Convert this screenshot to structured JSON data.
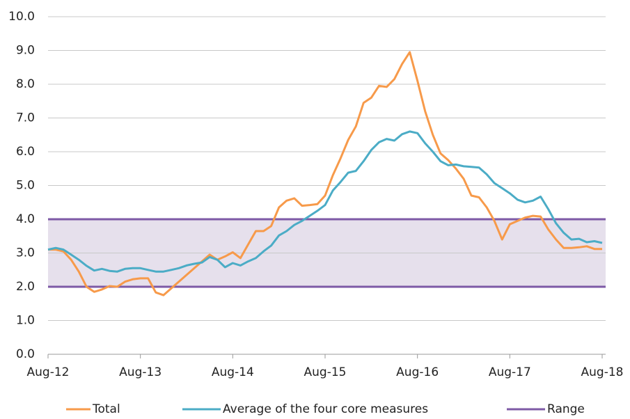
{
  "chart_data": {
    "type": "line",
    "categories": [
      "Aug-12",
      null,
      null,
      null,
      null,
      null,
      null,
      null,
      null,
      null,
      null,
      null,
      "Aug-13",
      null,
      null,
      null,
      null,
      null,
      null,
      null,
      null,
      null,
      null,
      null,
      "Aug-14",
      null,
      null,
      null,
      null,
      null,
      null,
      null,
      null,
      null,
      null,
      null,
      "Aug-15",
      null,
      null,
      null,
      null,
      null,
      null,
      null,
      null,
      null,
      null,
      null,
      "Aug-16",
      null,
      null,
      null,
      null,
      null,
      null,
      null,
      null,
      null,
      null,
      null,
      "Aug-17",
      null,
      null,
      null,
      null,
      null,
      null,
      null,
      null,
      null,
      null,
      null,
      "Aug-18"
    ],
    "series": [
      {
        "name": "Total",
        "color": "#f79a4a",
        "values": [
          3.1,
          3.1,
          3.05,
          2.8,
          2.45,
          2.0,
          1.85,
          1.92,
          2.02,
          2.0,
          2.15,
          2.22,
          2.25,
          2.25,
          1.83,
          1.75,
          1.95,
          2.15,
          2.35,
          2.55,
          2.75,
          2.95,
          2.8,
          2.9,
          3.02,
          2.85,
          3.25,
          3.65,
          3.65,
          3.8,
          4.35,
          4.55,
          4.62,
          4.4,
          4.42,
          4.45,
          4.7,
          5.3,
          5.8,
          6.35,
          6.75,
          7.45,
          7.6,
          7.95,
          7.92,
          8.15,
          8.6,
          8.95,
          8.1,
          7.2,
          6.5,
          5.95,
          5.75,
          5.5,
          5.2,
          4.7,
          4.65,
          4.35,
          3.95,
          3.4,
          3.85,
          3.95,
          4.05,
          4.1,
          4.08,
          3.7,
          3.4,
          3.15,
          3.15,
          3.17,
          3.2,
          3.12,
          3.12
        ]
      },
      {
        "name": "Average of the four core measures",
        "color": "#4bacc6",
        "values": [
          3.1,
          3.15,
          3.1,
          2.95,
          2.8,
          2.62,
          2.48,
          2.53,
          2.47,
          2.45,
          2.53,
          2.55,
          2.55,
          2.5,
          2.45,
          2.45,
          2.5,
          2.55,
          2.63,
          2.68,
          2.72,
          2.88,
          2.8,
          2.58,
          2.7,
          2.63,
          2.75,
          2.85,
          3.05,
          3.22,
          3.52,
          3.65,
          3.83,
          3.95,
          4.1,
          4.25,
          4.42,
          4.85,
          5.1,
          5.38,
          5.43,
          5.72,
          6.05,
          6.28,
          6.38,
          6.33,
          6.52,
          6.6,
          6.55,
          6.25,
          6.0,
          5.72,
          5.6,
          5.62,
          5.57,
          5.55,
          5.53,
          5.33,
          5.07,
          4.92,
          4.77,
          4.58,
          4.5,
          4.55,
          4.67,
          4.3,
          3.88,
          3.6,
          3.4,
          3.42,
          3.32,
          3.35,
          3.3
        ]
      }
    ],
    "range": {
      "name": "Range",
      "color": "#7d5aa6",
      "fill": "#e6e0ec",
      "values": [
        2.0,
        4.0
      ]
    },
    "ylim": [
      0,
      10
    ],
    "yticks": [
      {
        "value": 0,
        "label": "0.0"
      },
      {
        "value": 1,
        "label": "1.0"
      },
      {
        "value": 2,
        "label": "2.0"
      },
      {
        "value": 3,
        "label": "3.0"
      },
      {
        "value": 4,
        "label": "4.0"
      },
      {
        "value": 5,
        "label": "5.0"
      },
      {
        "value": 6,
        "label": "6.0"
      },
      {
        "value": 7,
        "label": "7.0"
      },
      {
        "value": 8,
        "label": "8.0"
      },
      {
        "value": 9,
        "label": "9.0"
      },
      {
        "value": 10,
        "label": "10.0"
      }
    ],
    "grid": true,
    "legend": "bottom"
  }
}
